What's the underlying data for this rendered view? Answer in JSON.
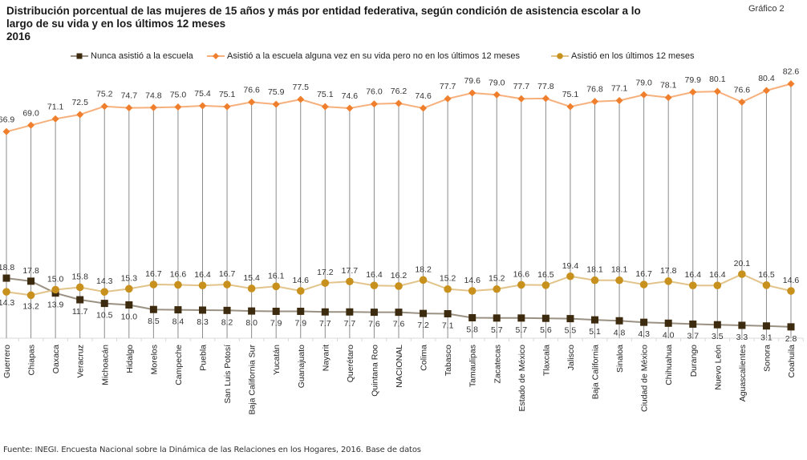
{
  "header": {
    "title_line1": "Distribución porcentual de las mujeres de 15 años y más por entidad federativa, según condición de asistencia escolar a lo",
    "title_line2": "largo de su vida y en los últimos 12 meses",
    "title_line3": "2016",
    "figure_label": "Gráfico  2"
  },
  "footer": {
    "source": "Fuente: INEGI. Encuesta Nacional sobre la Dinámica de las Relaciones en los Hogares, 2016. Base de datos"
  },
  "chart_data": {
    "type": "line",
    "title": "Distribución porcentual de las mujeres de 15 años y más por entidad federativa, según condición de asistencia escolar a lo largo de su vida y en los últimos 12 meses, 2016",
    "xlabel": "",
    "ylabel": "",
    "ylim": [
      0,
      85
    ],
    "grid": false,
    "legend_position": "top",
    "drop_lines": true,
    "categories": [
      "Guerrero",
      "Chiapas",
      "Oaxaca",
      "Veracruz",
      "Michoacán",
      "Hidalgo",
      "Morelos",
      "Campeche",
      "Puebla",
      "San Luis Potosí",
      "Baja California Sur",
      "Yucatán",
      "Guanajuato",
      "Nayarit",
      "Querétaro",
      "Quintana Roo",
      "NACIONAL",
      "Colima",
      "Tabasco",
      "Tamaulipas",
      "Zacatecas",
      "Estado de México",
      "Tlaxcala",
      "Jalisco",
      "Baja California",
      "Sinaloa",
      "Ciudad de México",
      "Chihuahua",
      "Durango",
      "Nuevo León",
      "Aguascalientes",
      "Sonora",
      "Coahuila"
    ],
    "series": [
      {
        "name": "Nunca asistió a la escuela",
        "color": "#3d2b0f",
        "line_color": "#9a9183",
        "marker": "square",
        "label_position": "mixed",
        "values": [
          18.8,
          17.8,
          13.9,
          11.7,
          10.5,
          10.0,
          8.5,
          8.4,
          8.3,
          8.2,
          8.0,
          7.9,
          7.9,
          7.7,
          7.7,
          7.6,
          7.6,
          7.2,
          7.1,
          5.8,
          5.7,
          5.7,
          5.6,
          5.5,
          5.1,
          4.8,
          4.3,
          4.0,
          3.7,
          3.5,
          3.3,
          3.1,
          2.8
        ]
      },
      {
        "name": "Asistió a la escuela alguna vez en su vida pero no en los últimos 12 meses",
        "color": "#f07f2d",
        "line_color": "#f7b07c",
        "marker": "diamond",
        "label_position": "above",
        "values": [
          66.9,
          69.0,
          71.1,
          72.5,
          75.2,
          74.7,
          74.8,
          75.0,
          75.4,
          75.1,
          76.6,
          75.9,
          77.5,
          75.1,
          74.6,
          76.0,
          76.2,
          74.6,
          77.7,
          79.6,
          79.0,
          77.7,
          77.8,
          75.1,
          76.8,
          77.1,
          79.0,
          78.1,
          79.9,
          80.1,
          76.6,
          80.4,
          82.6
        ]
      },
      {
        "name": "Asistió en los últimos 12 meses",
        "color": "#c8901d",
        "line_color": "#e2c48a",
        "marker": "circle",
        "label_position": "mixed",
        "values": [
          14.3,
          13.2,
          15.0,
          15.8,
          14.3,
          15.3,
          16.7,
          16.6,
          16.4,
          16.7,
          15.4,
          16.1,
          14.6,
          17.2,
          17.7,
          16.4,
          16.2,
          18.2,
          15.2,
          14.6,
          15.2,
          16.6,
          16.5,
          19.4,
          18.1,
          18.1,
          16.7,
          17.8,
          16.4,
          16.4,
          20.1,
          16.5,
          14.6
        ]
      }
    ]
  }
}
